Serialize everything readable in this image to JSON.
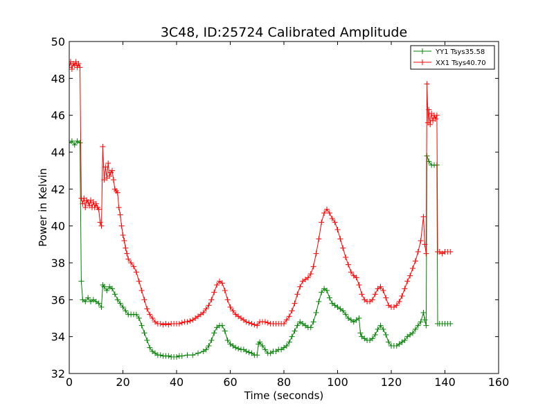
{
  "chart_data": {
    "type": "line",
    "title": "3C48, ID:25724 Calibrated Amplitude",
    "xlabel": "Time (seconds)",
    "ylabel": "Power in Kelvin",
    "xlim": [
      0,
      160
    ],
    "ylim": [
      32,
      50
    ],
    "xticks": [
      "0",
      "20",
      "40",
      "60",
      "80",
      "100",
      "120",
      "140",
      "160"
    ],
    "yticks": [
      "32",
      "34",
      "36",
      "38",
      "40",
      "42",
      "44",
      "46",
      "48",
      "50"
    ],
    "grid": false,
    "legend_position": "top-right",
    "marker": "plus",
    "series": [
      {
        "name": "YY1 Tsys35.58",
        "color": "#008000",
        "points": [
          [
            0,
            44.5
          ],
          [
            1,
            44.6
          ],
          [
            2,
            44.4
          ],
          [
            3,
            44.6
          ],
          [
            4,
            44.5
          ],
          [
            4.5,
            37.0
          ],
          [
            5,
            36.0
          ],
          [
            6,
            35.9
          ],
          [
            7,
            36.1
          ],
          [
            8,
            35.9
          ],
          [
            9,
            36.0
          ],
          [
            10,
            35.9
          ],
          [
            11,
            35.8
          ],
          [
            12,
            35.6
          ],
          [
            12.5,
            36.8
          ],
          [
            13,
            36.7
          ],
          [
            14,
            36.5
          ],
          [
            15,
            36.7
          ],
          [
            16,
            36.6
          ],
          [
            17,
            36.3
          ],
          [
            18,
            36.0
          ],
          [
            19,
            35.8
          ],
          [
            20,
            35.6
          ],
          [
            21,
            35.4
          ],
          [
            22,
            35.2
          ],
          [
            23,
            35.2
          ],
          [
            24,
            35.2
          ],
          [
            25,
            35.2
          ],
          [
            26,
            35.0
          ],
          [
            27,
            34.6
          ],
          [
            28,
            34.2
          ],
          [
            29,
            33.8
          ],
          [
            30,
            33.4
          ],
          [
            31,
            33.2
          ],
          [
            32,
            33.1
          ],
          [
            33,
            33.0
          ],
          [
            34,
            33.0
          ],
          [
            35,
            32.95
          ],
          [
            36,
            32.95
          ],
          [
            37,
            32.95
          ],
          [
            38,
            32.9
          ],
          [
            39,
            32.9
          ],
          [
            40,
            32.9
          ],
          [
            41,
            32.95
          ],
          [
            42,
            32.95
          ],
          [
            44,
            33.0
          ],
          [
            46,
            33.0
          ],
          [
            48,
            33.1
          ],
          [
            50,
            33.2
          ],
          [
            51,
            33.3
          ],
          [
            52,
            33.5
          ],
          [
            53,
            33.8
          ],
          [
            54,
            34.2
          ],
          [
            55,
            34.5
          ],
          [
            56,
            34.6
          ],
          [
            57,
            34.6
          ],
          [
            58,
            34.3
          ],
          [
            59,
            33.8
          ],
          [
            60,
            33.6
          ],
          [
            61,
            33.5
          ],
          [
            62,
            33.4
          ],
          [
            63,
            33.35
          ],
          [
            64,
            33.3
          ],
          [
            65,
            33.3
          ],
          [
            66,
            33.2
          ],
          [
            67,
            33.15
          ],
          [
            68,
            33.1
          ],
          [
            69,
            33.0
          ],
          [
            70,
            33.0
          ],
          [
            70.5,
            33.6
          ],
          [
            71,
            33.7
          ],
          [
            72,
            33.5
          ],
          [
            73,
            33.3
          ],
          [
            74,
            33.1
          ],
          [
            75,
            33.1
          ],
          [
            76,
            33.2
          ],
          [
            77,
            33.2
          ],
          [
            78,
            33.3
          ],
          [
            79,
            33.3
          ],
          [
            80,
            33.4
          ],
          [
            81,
            33.5
          ],
          [
            82,
            33.7
          ],
          [
            83,
            34.0
          ],
          [
            84,
            34.3
          ],
          [
            85,
            34.6
          ],
          [
            86,
            34.8
          ],
          [
            87,
            34.7
          ],
          [
            88,
            34.6
          ],
          [
            89,
            34.5
          ],
          [
            90,
            34.5
          ],
          [
            91,
            34.8
          ],
          [
            92,
            35.3
          ],
          [
            93,
            35.9
          ],
          [
            94,
            36.4
          ],
          [
            95,
            36.6
          ],
          [
            96,
            36.5
          ],
          [
            97,
            36.1
          ],
          [
            98,
            35.8
          ],
          [
            99,
            35.7
          ],
          [
            100,
            35.6
          ],
          [
            101,
            35.5
          ],
          [
            102,
            35.4
          ],
          [
            103,
            35.2
          ],
          [
            104,
            35.0
          ],
          [
            105,
            34.9
          ],
          [
            106,
            34.8
          ],
          [
            107,
            34.9
          ],
          [
            108,
            35.0
          ],
          [
            108.5,
            34.2
          ],
          [
            109,
            34.0
          ],
          [
            110,
            33.9
          ],
          [
            111,
            33.8
          ],
          [
            112,
            33.8
          ],
          [
            113,
            33.9
          ],
          [
            114,
            34.1
          ],
          [
            115,
            34.4
          ],
          [
            116,
            34.6
          ],
          [
            117,
            34.4
          ],
          [
            118,
            34.1
          ],
          [
            119,
            33.7
          ],
          [
            120,
            33.5
          ],
          [
            121,
            33.5
          ],
          [
            122,
            33.5
          ],
          [
            123,
            33.6
          ],
          [
            124,
            33.7
          ],
          [
            125,
            33.8
          ],
          [
            126,
            34.0
          ],
          [
            127,
            34.1
          ],
          [
            128,
            34.2
          ],
          [
            129,
            34.4
          ],
          [
            130,
            34.6
          ],
          [
            131,
            34.8
          ],
          [
            132,
            35.3
          ],
          [
            132.5,
            34.9
          ],
          [
            133,
            34.6
          ],
          [
            133.3,
            43.8
          ],
          [
            134,
            43.5
          ],
          [
            135,
            43.3
          ],
          [
            136,
            43.3
          ],
          [
            137,
            43.3
          ],
          [
            137.3,
            34.7
          ],
          [
            138,
            34.7
          ],
          [
            139,
            34.7
          ],
          [
            140,
            34.7
          ],
          [
            141,
            34.7
          ],
          [
            142,
            34.7
          ]
        ]
      },
      {
        "name": "XX1 Tsys40.70",
        "color": "#ff0000",
        "points": [
          [
            0,
            48.6
          ],
          [
            0.5,
            48.9
          ],
          [
            1,
            48.5
          ],
          [
            1.5,
            48.8
          ],
          [
            2,
            48.7
          ],
          [
            2.5,
            48.9
          ],
          [
            3,
            48.6
          ],
          [
            3.5,
            48.8
          ],
          [
            4,
            48.6
          ],
          [
            4.5,
            41.5
          ],
          [
            5,
            41.2
          ],
          [
            5.5,
            41.5
          ],
          [
            6,
            41.0
          ],
          [
            6.5,
            41.4
          ],
          [
            7,
            41.3
          ],
          [
            7.5,
            41.1
          ],
          [
            8,
            41.4
          ],
          [
            8.5,
            41.0
          ],
          [
            9,
            41.3
          ],
          [
            9.5,
            41.0
          ],
          [
            10,
            41.2
          ],
          [
            10.5,
            41.0
          ],
          [
            11,
            40.9
          ],
          [
            11.5,
            40.2
          ],
          [
            12,
            40.0
          ],
          [
            12.5,
            44.3
          ],
          [
            13,
            42.5
          ],
          [
            13.5,
            43.2
          ],
          [
            14,
            42.6
          ],
          [
            14.5,
            43.4
          ],
          [
            15,
            42.7
          ],
          [
            15.5,
            42.9
          ],
          [
            16,
            43.0
          ],
          [
            16.5,
            42.5
          ],
          [
            17,
            42.0
          ],
          [
            17.5,
            41.9
          ],
          [
            18,
            41.8
          ],
          [
            18.5,
            41.0
          ],
          [
            19,
            40.6
          ],
          [
            19.5,
            40.0
          ],
          [
            20,
            39.5
          ],
          [
            20.5,
            39.2
          ],
          [
            21,
            38.8
          ],
          [
            21.5,
            38.5
          ],
          [
            22,
            38.2
          ],
          [
            23,
            38.0
          ],
          [
            24,
            37.8
          ],
          [
            25,
            37.5
          ],
          [
            26,
            37.0
          ],
          [
            27,
            36.5
          ],
          [
            28,
            36.0
          ],
          [
            29,
            35.5
          ],
          [
            30,
            35.2
          ],
          [
            31,
            35.0
          ],
          [
            32,
            34.8
          ],
          [
            33,
            34.7
          ],
          [
            34,
            34.7
          ],
          [
            35,
            34.65
          ],
          [
            36,
            34.7
          ],
          [
            37,
            34.65
          ],
          [
            38,
            34.7
          ],
          [
            39,
            34.7
          ],
          [
            40,
            34.7
          ],
          [
            41,
            34.7
          ],
          [
            42,
            34.75
          ],
          [
            43,
            34.8
          ],
          [
            44,
            34.8
          ],
          [
            45,
            34.85
          ],
          [
            46,
            34.9
          ],
          [
            47,
            35.0
          ],
          [
            48,
            35.1
          ],
          [
            49,
            35.2
          ],
          [
            50,
            35.3
          ],
          [
            51,
            35.5
          ],
          [
            52,
            35.7
          ],
          [
            53,
            36.0
          ],
          [
            54,
            36.4
          ],
          [
            55,
            36.8
          ],
          [
            56,
            37.0
          ],
          [
            57,
            36.9
          ],
          [
            58,
            36.5
          ],
          [
            59,
            36.0
          ],
          [
            60,
            35.6
          ],
          [
            61,
            35.4
          ],
          [
            62,
            35.2
          ],
          [
            63,
            35.1
          ],
          [
            64,
            35.0
          ],
          [
            65,
            34.9
          ],
          [
            66,
            34.8
          ],
          [
            67,
            34.75
          ],
          [
            68,
            34.7
          ],
          [
            69,
            34.65
          ],
          [
            70,
            34.6
          ],
          [
            71,
            34.8
          ],
          [
            72,
            34.8
          ],
          [
            73,
            34.8
          ],
          [
            74,
            34.75
          ],
          [
            75,
            34.7
          ],
          [
            76,
            34.7
          ],
          [
            77,
            34.7
          ],
          [
            78,
            34.7
          ],
          [
            79,
            34.7
          ],
          [
            80,
            34.7
          ],
          [
            81,
            34.9
          ],
          [
            82,
            35.1
          ],
          [
            83,
            35.4
          ],
          [
            84,
            35.8
          ],
          [
            85,
            36.3
          ],
          [
            86,
            36.7
          ],
          [
            87,
            37.0
          ],
          [
            88,
            37.1
          ],
          [
            89,
            37.2
          ],
          [
            90,
            37.4
          ],
          [
            91,
            37.8
          ],
          [
            92,
            38.5
          ],
          [
            93,
            39.3
          ],
          [
            94,
            40.2
          ],
          [
            95,
            40.7
          ],
          [
            96,
            40.9
          ],
          [
            97,
            40.7
          ],
          [
            98,
            40.4
          ],
          [
            99,
            40.2
          ],
          [
            100,
            39.8
          ],
          [
            101,
            39.3
          ],
          [
            102,
            38.8
          ],
          [
            103,
            38.3
          ],
          [
            104,
            37.9
          ],
          [
            105,
            37.5
          ],
          [
            106,
            37.3
          ],
          [
            107,
            37.2
          ],
          [
            108,
            36.8
          ],
          [
            109,
            36.3
          ],
          [
            110,
            36.0
          ],
          [
            111,
            35.9
          ],
          [
            112,
            35.9
          ],
          [
            113,
            36.0
          ],
          [
            114,
            36.3
          ],
          [
            115,
            36.6
          ],
          [
            116,
            36.7
          ],
          [
            117,
            36.5
          ],
          [
            118,
            36.1
          ],
          [
            119,
            35.7
          ],
          [
            120,
            35.6
          ],
          [
            121,
            35.6
          ],
          [
            122,
            35.7
          ],
          [
            123,
            35.9
          ],
          [
            124,
            36.2
          ],
          [
            125,
            36.6
          ],
          [
            126,
            37.0
          ],
          [
            127,
            37.3
          ],
          [
            128,
            37.7
          ],
          [
            129,
            38.1
          ],
          [
            130,
            38.6
          ],
          [
            131,
            39.2
          ],
          [
            132,
            40.5
          ],
          [
            132.5,
            39.0
          ],
          [
            133,
            38.5
          ],
          [
            133.3,
            47.7
          ],
          [
            133.7,
            45.6
          ],
          [
            134,
            46.3
          ],
          [
            134.5,
            45.5
          ],
          [
            135,
            46.1
          ],
          [
            135.5,
            45.7
          ],
          [
            136,
            46.0
          ],
          [
            136.5,
            45.8
          ],
          [
            137,
            46.0
          ],
          [
            137.3,
            38.6
          ],
          [
            138,
            38.6
          ],
          [
            139,
            38.5
          ],
          [
            140,
            38.6
          ],
          [
            141,
            38.6
          ],
          [
            142,
            38.6
          ]
        ]
      }
    ]
  }
}
